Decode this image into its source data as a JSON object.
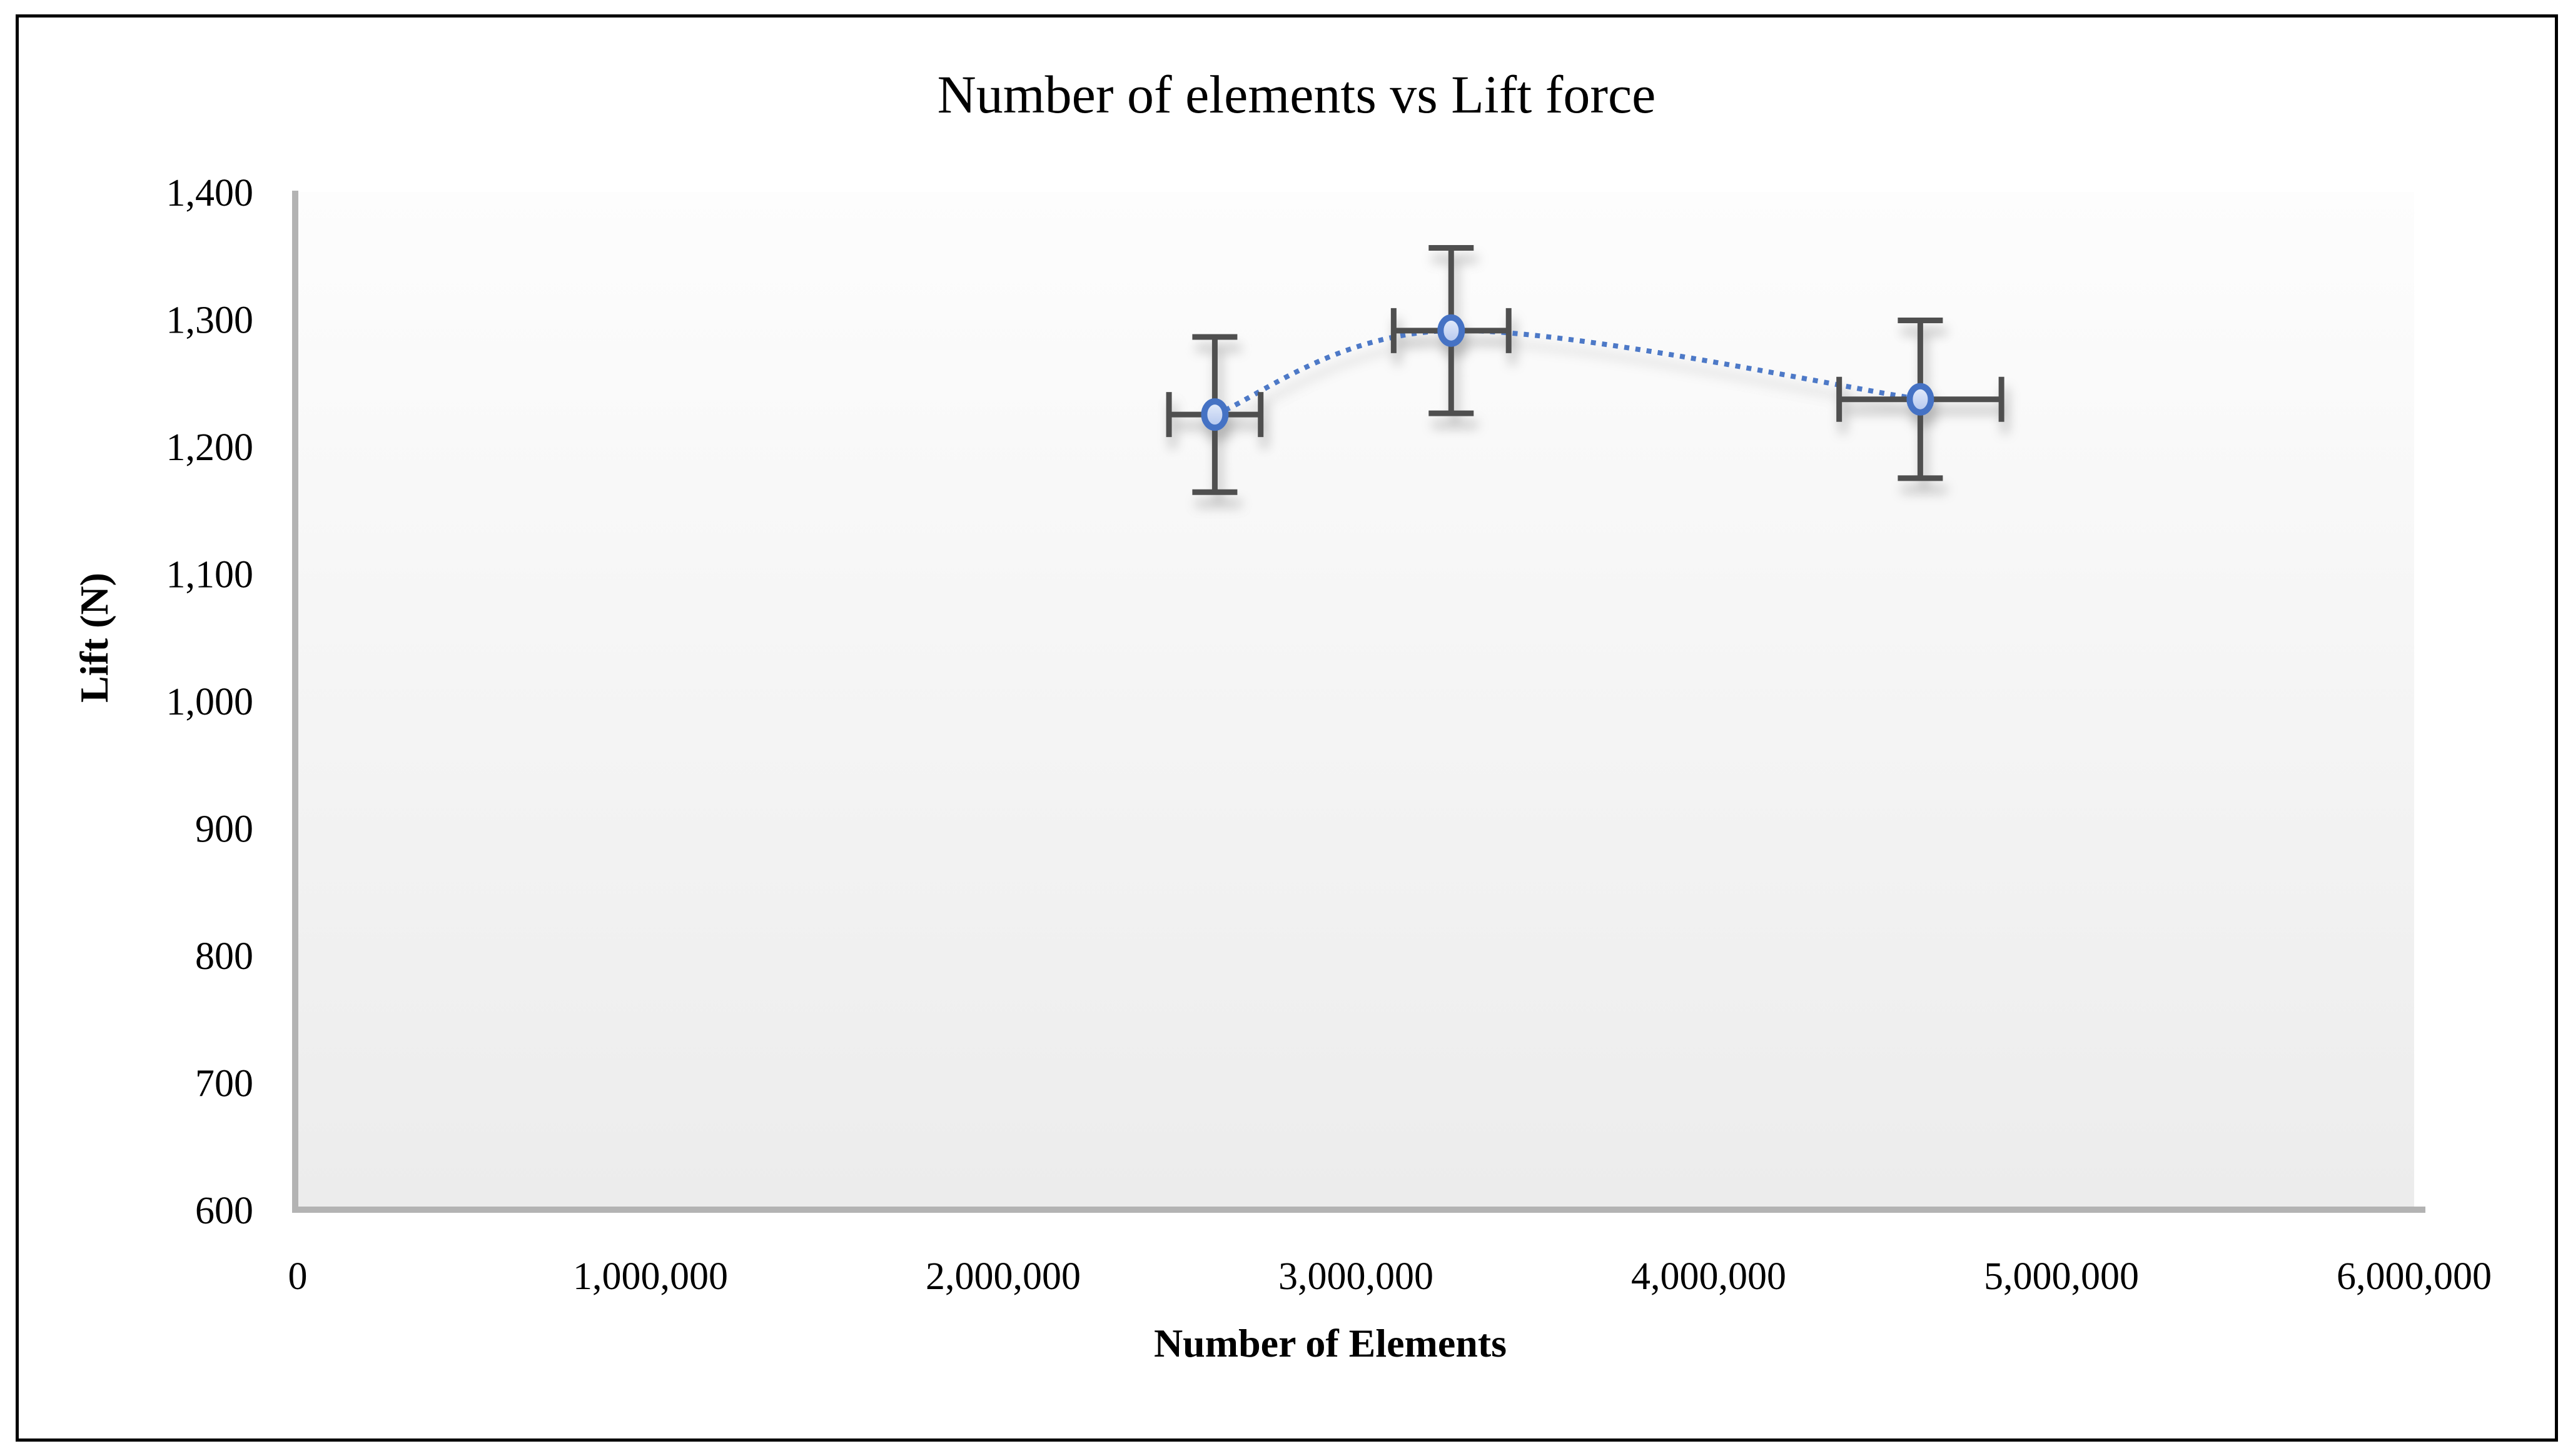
{
  "window": {
    "background": "#ffffff",
    "frame_border_color": "#000000"
  },
  "chart_data": {
    "type": "scatter",
    "title": "Number of elements vs Lift force",
    "xlabel": "Number of Elements",
    "ylabel": "Lift (N)",
    "xlim": [
      0,
      6000000
    ],
    "ylim": [
      600,
      1400
    ],
    "x_ticks": [
      0,
      1000000,
      2000000,
      3000000,
      4000000,
      5000000,
      6000000
    ],
    "x_tick_labels": [
      "0",
      "1,000,000",
      "2,000,000",
      "3,000,000",
      "4,000,000",
      "5,000,000",
      "6,000,000"
    ],
    "y_ticks": [
      600,
      700,
      800,
      900,
      1000,
      1100,
      1200,
      1300,
      1400
    ],
    "y_tick_labels": [
      "600",
      "700",
      "800",
      "900",
      "1,000",
      "1,100",
      "1,200",
      "1,300",
      "1,400"
    ],
    "grid": false,
    "legend": false,
    "line_style": "dotted-smooth",
    "marker": "circle",
    "series": [
      {
        "name": "Lift force",
        "points": [
          {
            "x": 2600000,
            "y": 1225,
            "x_err": 130000,
            "y_err": 61
          },
          {
            "x": 3270000,
            "y": 1291,
            "x_err": 163000,
            "y_err": 65
          },
          {
            "x": 4600000,
            "y": 1237,
            "x_err": 230000,
            "y_err": 62
          }
        ]
      }
    ]
  },
  "colors": {
    "accent_blue": "#4472C4",
    "dotted_line": "#4d79c7",
    "marker_border": "#4472C4",
    "marker_fill_top": "#e6edfb",
    "marker_fill_bottom": "#b3c6ee",
    "error_bar": "#4f4f4f",
    "axis_line": "#b3b3b3",
    "plot_bg_top": "#fdfdfd",
    "plot_bg_bottom": "#ececec"
  }
}
